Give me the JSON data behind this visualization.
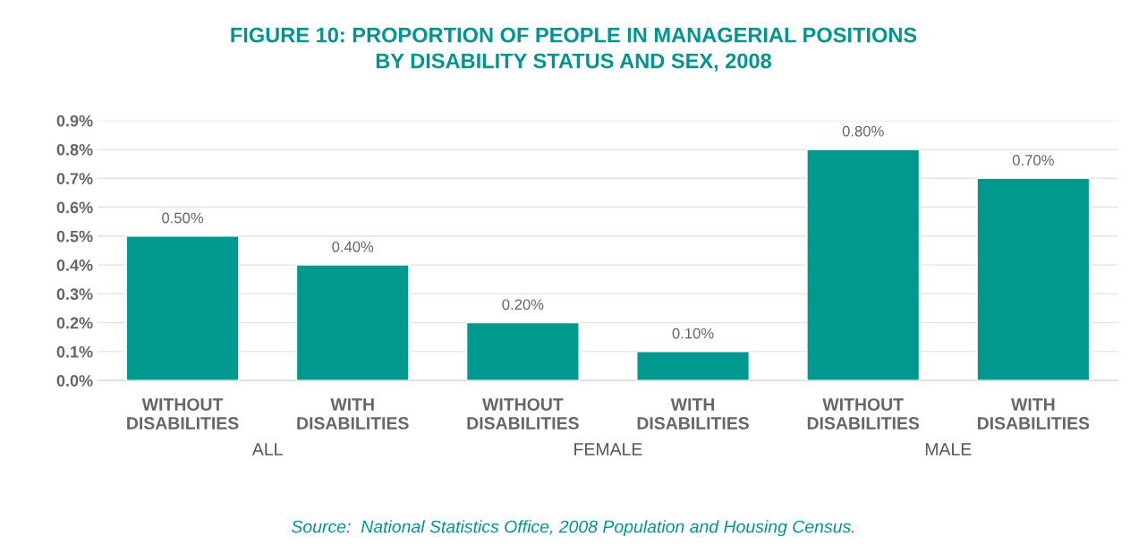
{
  "chart_data": {
    "type": "bar",
    "title": "FIGURE 10: PROPORTION OF PEOPLE IN MANAGERIAL POSITIONS\nBY DISABILITY STATUS AND SEX, 2008",
    "categories": [
      "WITHOUT\nDISABILITIES",
      "WITH\nDISABILITIES",
      "WITHOUT\nDISABILITIES",
      "WITH\nDISABILITIES",
      "WITHOUT\nDISABILITIES",
      "WITH\nDISABILITIES"
    ],
    "values": [
      0.5,
      0.4,
      0.2,
      0.1,
      0.8,
      0.7
    ],
    "value_labels": [
      "0.50%",
      "0.40%",
      "0.20%",
      "0.10%",
      "0.80%",
      "0.70%"
    ],
    "color": "#009990",
    "ylim": [
      0,
      0.9
    ],
    "yticks": [
      {
        "value": 0,
        "label": "0.0%"
      },
      {
        "value": 0.1,
        "label": "0.1%"
      },
      {
        "value": 0.2,
        "label": "0.2%"
      },
      {
        "value": 0.3,
        "label": "0.3%"
      },
      {
        "value": 0.4,
        "label": "0.4%"
      },
      {
        "value": 0.5,
        "label": "0.5%"
      },
      {
        "value": 0.6,
        "label": "0.6%"
      },
      {
        "value": 0.7,
        "label": "0.7%"
      },
      {
        "value": 0.8,
        "label": "0.8%"
      },
      {
        "value": 0.9,
        "label": "0.9%"
      }
    ],
    "grid": "y",
    "annotations": [
      "ALL",
      "FEMALE",
      "MALE",
      "Source:  National Statistics Office, 2008 Population and Housing Census."
    ]
  }
}
